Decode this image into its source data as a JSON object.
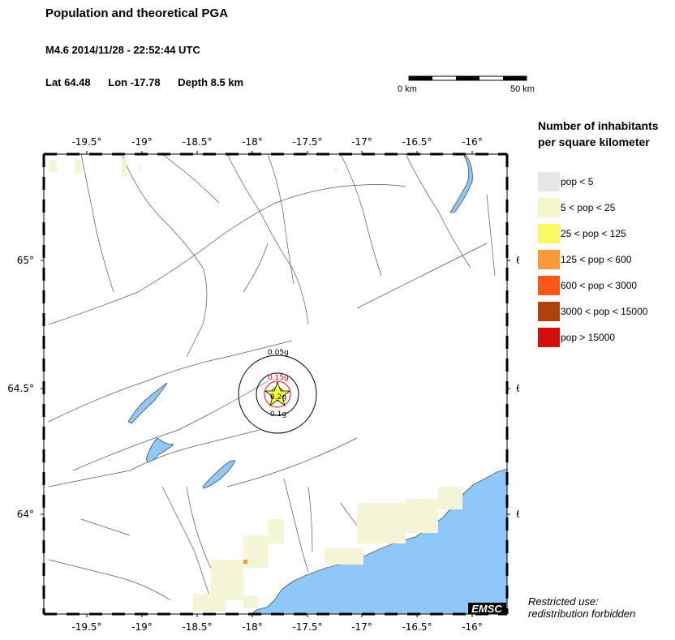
{
  "header": {
    "title": "Population and theoretical PGA",
    "event": "M4.6  2014/11/28 - 22:52:44 UTC",
    "lat": "Lat 64.48",
    "lon": "Lon -17.78",
    "depth": "Depth  8.5 km"
  },
  "scalebar": {
    "start_label": "0 km",
    "end_label": "50 km"
  },
  "map": {
    "lon_ticks": [
      "-19.5°",
      "-19°",
      "-18.5°",
      "-18°",
      "-17.5°",
      "-17°",
      "-16.5°",
      "-16°"
    ],
    "lat_ticks": [
      "65°",
      "64.5°",
      "64°"
    ],
    "epicenter": {
      "lat": 64.48,
      "lon": -17.78
    },
    "pga_labels": {
      "outer": "0.05g",
      "middle": "0.1g",
      "inner": "0.15g",
      "center": "0.2g"
    },
    "watermark": "EMSC",
    "colors": {
      "sea": "#8ec8f8",
      "lake": "#8ec8f8",
      "low_pop": "#f4f4d6",
      "epicenter": "#ffff33",
      "pga_inner": "#ff0000"
    }
  },
  "legend": {
    "title_line1": "Number of inhabitants",
    "title_line2": "per square kilometer",
    "items": [
      {
        "label": "pop < 5",
        "color": "#e6e6e6"
      },
      {
        "label": "5 < pop < 25",
        "color": "#f6f6cc"
      },
      {
        "label": "25 < pop < 125",
        "color": "#f8f860"
      },
      {
        "label": "125 < pop < 600",
        "color": "#f89a38"
      },
      {
        "label": "600 < pop < 3000",
        "color": "#fa5614"
      },
      {
        "label": "3000 < pop < 15000",
        "color": "#b0400e"
      },
      {
        "label": "pop > 15000",
        "color": "#d40c0c"
      }
    ]
  },
  "footer": {
    "line1": "Restricted use:",
    "line2": "redistribution forbidden"
  }
}
